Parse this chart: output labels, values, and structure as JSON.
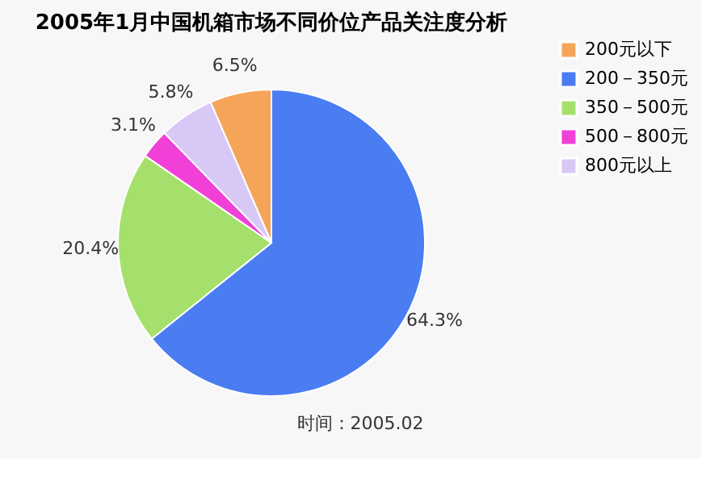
{
  "chart_data": {
    "type": "pie",
    "title": "2005年1月中国机箱市场不同价位产品关注度分析",
    "categories": [
      "200元以下",
      "200－350元",
      "350－500元",
      "500－800元",
      "800元以上"
    ],
    "values": [
      6.5,
      64.3,
      20.4,
      3.1,
      5.8
    ],
    "colors": [
      "#f5a55a",
      "#4a7cf2",
      "#a6e06c",
      "#f040d8",
      "#d8c8f6"
    ],
    "value_labels": [
      "6.5%",
      "64.3%",
      "20.4%",
      "3.1%",
      "5.8%"
    ],
    "legend": "right",
    "annotations": [
      "时间：2005.02"
    ]
  }
}
